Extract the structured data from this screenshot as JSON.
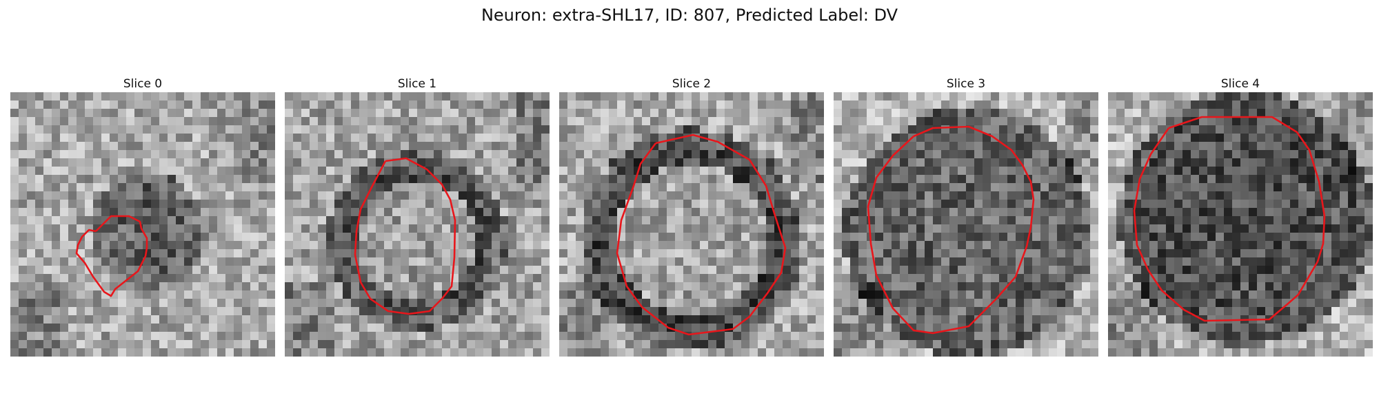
{
  "figure": {
    "title": "Neuron: extra-SHL17, ID: 807, Predicted Label: DV",
    "contour_color": "#e8161b"
  },
  "slices": [
    {
      "title": "Slice 0",
      "cell": "small dark blob, lower-center",
      "contour_pattern": "slice0"
    },
    {
      "title": "Slice 1",
      "cell": "ring with lighter interior",
      "contour_pattern": "slice1"
    },
    {
      "title": "Slice 2",
      "cell": "large ring with bright interior",
      "contour_pattern": "slice2"
    },
    {
      "title": "Slice 3",
      "cell": "large dark textured disk",
      "contour_pattern": "slice3"
    },
    {
      "title": "Slice 4",
      "cell": "large dark textured disk",
      "contour_pattern": "slice4"
    }
  ]
}
